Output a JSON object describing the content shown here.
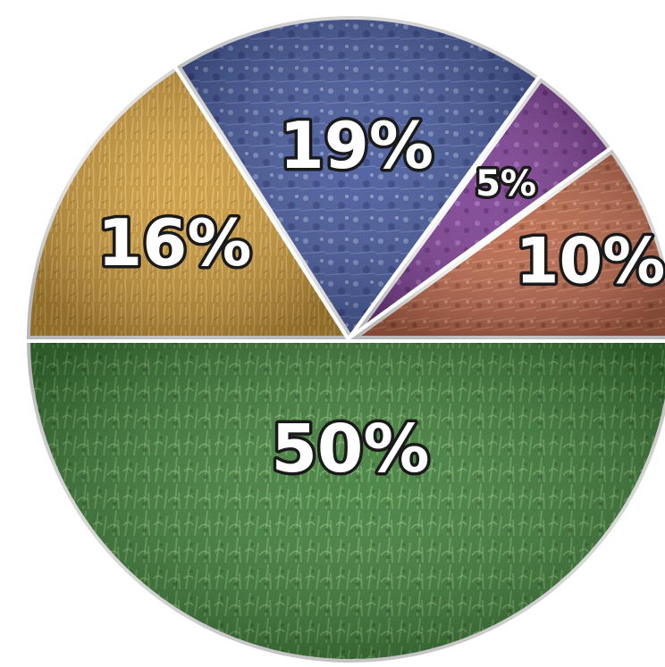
{
  "chart_data": {
    "type": "pie",
    "slices": [
      {
        "label": "50%",
        "value": 50,
        "color": "#3f7d3a",
        "texture": "corn-field"
      },
      {
        "label": "16%",
        "value": 16,
        "color": "#c9973a",
        "texture": "wheat-field"
      },
      {
        "label": "19%",
        "value": 19,
        "color": "#45589a",
        "texture": "blue-field"
      },
      {
        "label": "5%",
        "value": 5,
        "color": "#7d3f92",
        "texture": "purple-field"
      },
      {
        "label": "10%",
        "value": 10,
        "color": "#b8664a",
        "texture": "orchard-field"
      }
    ],
    "title": "",
    "legend": "none",
    "label_style": "white-bold-outlined"
  }
}
